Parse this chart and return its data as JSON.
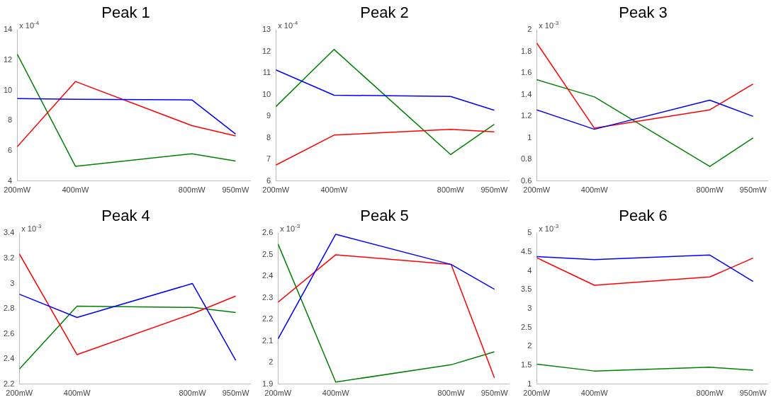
{
  "chart_data": [
    {
      "type": "line",
      "title": "Peak 1",
      "ylabel": "x 10$^{-4}$",
      "x": [
        200,
        400,
        800,
        950
      ],
      "xlim": [
        200,
        1000
      ],
      "xticks": [
        {
          "value": 200,
          "label": "200mW"
        },
        {
          "value": 400,
          "label": "400mW"
        },
        {
          "value": 800,
          "label": "800mW"
        },
        {
          "value": 950,
          "label": "950mW"
        }
      ],
      "ylim": [
        4,
        14
      ],
      "yticks": [
        4,
        6,
        8,
        10,
        12,
        14
      ],
      "grid": false,
      "legend": false,
      "marker": "none",
      "line_style": "solid",
      "series": [
        {
          "color": "#0000ff",
          "values": [
            9.46,
            9.42,
            9.37,
            7.11
          ]
        },
        {
          "color": "#ff0000",
          "values": [
            6.27,
            10.59,
            7.67,
            6.99
          ]
        },
        {
          "color": "#008000",
          "values": [
            12.41,
            4.98,
            5.81,
            5.33
          ]
        }
      ]
    },
    {
      "type": "line",
      "title": "Peak 2",
      "ylabel": "x 10$^{-4}$",
      "x": [
        200,
        400,
        800,
        950
      ],
      "xlim": [
        200,
        1000
      ],
      "xticks": [
        {
          "value": 200,
          "label": "200mW"
        },
        {
          "value": 400,
          "label": "400mW"
        },
        {
          "value": 800,
          "label": "800mW"
        },
        {
          "value": 950,
          "label": "950mW"
        }
      ],
      "ylim": [
        6,
        13
      ],
      "yticks": [
        6,
        7,
        8,
        9,
        10,
        11,
        12,
        13
      ],
      "grid": false,
      "legend": false,
      "marker": "none",
      "line_style": "solid",
      "series": [
        {
          "color": "#0000ff",
          "values": [
            11.15,
            9.98,
            9.92,
            9.28
          ]
        },
        {
          "color": "#ff0000",
          "values": [
            6.74,
            8.13,
            8.4,
            8.28
          ]
        },
        {
          "color": "#008000",
          "values": [
            9.45,
            12.1,
            7.23,
            8.63
          ]
        }
      ]
    },
    {
      "type": "line",
      "title": "Peak 3",
      "ylabel": "x 10$^{-3}$",
      "x": [
        200,
        400,
        800,
        950
      ],
      "xlim": [
        200,
        1000
      ],
      "xticks": [
        {
          "value": 200,
          "label": "200mW"
        },
        {
          "value": 400,
          "label": "400mW"
        },
        {
          "value": 800,
          "label": "800mW"
        },
        {
          "value": 950,
          "label": "950mW"
        }
      ],
      "ylim": [
        0.6,
        2
      ],
      "yticks": [
        0.6,
        0.8,
        1,
        1.2,
        1.4,
        1.6,
        1.8,
        2
      ],
      "grid": false,
      "legend": false,
      "marker": "none",
      "line_style": "solid",
      "series": [
        {
          "color": "#0000ff",
          "values": [
            1.26,
            1.08,
            1.35,
            1.2
          ]
        },
        {
          "color": "#ff0000",
          "values": [
            1.88,
            1.09,
            1.26,
            1.5
          ]
        },
        {
          "color": "#008000",
          "values": [
            1.54,
            1.38,
            0.735,
            1.0
          ]
        }
      ]
    },
    {
      "type": "line",
      "title": "Peak 4",
      "ylabel": "x 10$^{-3}$",
      "x": [
        200,
        400,
        800,
        950
      ],
      "xlim": [
        200,
        1000
      ],
      "xticks": [
        {
          "value": 200,
          "label": "200mW"
        },
        {
          "value": 400,
          "label": "400mW"
        },
        {
          "value": 800,
          "label": "800mW"
        },
        {
          "value": 950,
          "label": "950mW"
        }
      ],
      "ylim": [
        2.2,
        3.4
      ],
      "yticks": [
        2.2,
        2.4,
        2.6,
        2.8,
        3,
        3.2,
        3.4
      ],
      "grid": false,
      "legend": false,
      "marker": "none",
      "line_style": "solid",
      "series": [
        {
          "color": "#0000ff",
          "values": [
            2.915,
            2.73,
            3.0,
            2.39
          ]
        },
        {
          "color": "#ff0000",
          "values": [
            3.235,
            2.435,
            2.76,
            2.9
          ]
        },
        {
          "color": "#008000",
          "values": [
            2.32,
            2.82,
            2.81,
            2.77
          ]
        }
      ]
    },
    {
      "type": "line",
      "title": "Peak 5",
      "ylabel": "x 10$^{-3}$",
      "x": [
        200,
        400,
        800,
        950
      ],
      "xlim": [
        200,
        1000
      ],
      "xticks": [
        {
          "value": 200,
          "label": "200mW"
        },
        {
          "value": 400,
          "label": "400mW"
        },
        {
          "value": 800,
          "label": "800mW"
        },
        {
          "value": 950,
          "label": "950mW"
        }
      ],
      "ylim": [
        1.9,
        2.6
      ],
      "yticks": [
        1.9,
        2,
        2.1,
        2.2,
        2.3,
        2.4,
        2.5,
        2.6
      ],
      "grid": false,
      "legend": false,
      "marker": "none",
      "line_style": "solid",
      "series": [
        {
          "color": "#0000ff",
          "values": [
            2.11,
            2.595,
            2.455,
            2.34
          ]
        },
        {
          "color": "#ff0000",
          "values": [
            2.28,
            2.5,
            2.455,
            1.93
          ]
        },
        {
          "color": "#008000",
          "values": [
            2.55,
            1.91,
            1.99,
            2.05
          ]
        }
      ]
    },
    {
      "type": "line",
      "title": "Peak 6",
      "ylabel": "x 10$^{-3}$",
      "x": [
        200,
        400,
        800,
        950
      ],
      "xlim": [
        200,
        1000
      ],
      "xticks": [
        {
          "value": 200,
          "label": "200mW"
        },
        {
          "value": 400,
          "label": "400mW"
        },
        {
          "value": 800,
          "label": "800mW"
        },
        {
          "value": 950,
          "label": "950mW"
        }
      ],
      "ylim": [
        1,
        5
      ],
      "yticks": [
        1,
        1.5,
        2,
        2.5,
        3,
        3.5,
        4,
        4.5,
        5
      ],
      "grid": false,
      "legend": false,
      "marker": "none",
      "line_style": "solid",
      "series": [
        {
          "color": "#0000ff",
          "values": [
            4.38,
            4.3,
            4.42,
            3.72
          ]
        },
        {
          "color": "#ff0000",
          "values": [
            4.35,
            3.62,
            3.84,
            4.34
          ]
        },
        {
          "color": "#008000",
          "values": [
            1.53,
            1.35,
            1.45,
            1.37
          ]
        }
      ]
    }
  ]
}
